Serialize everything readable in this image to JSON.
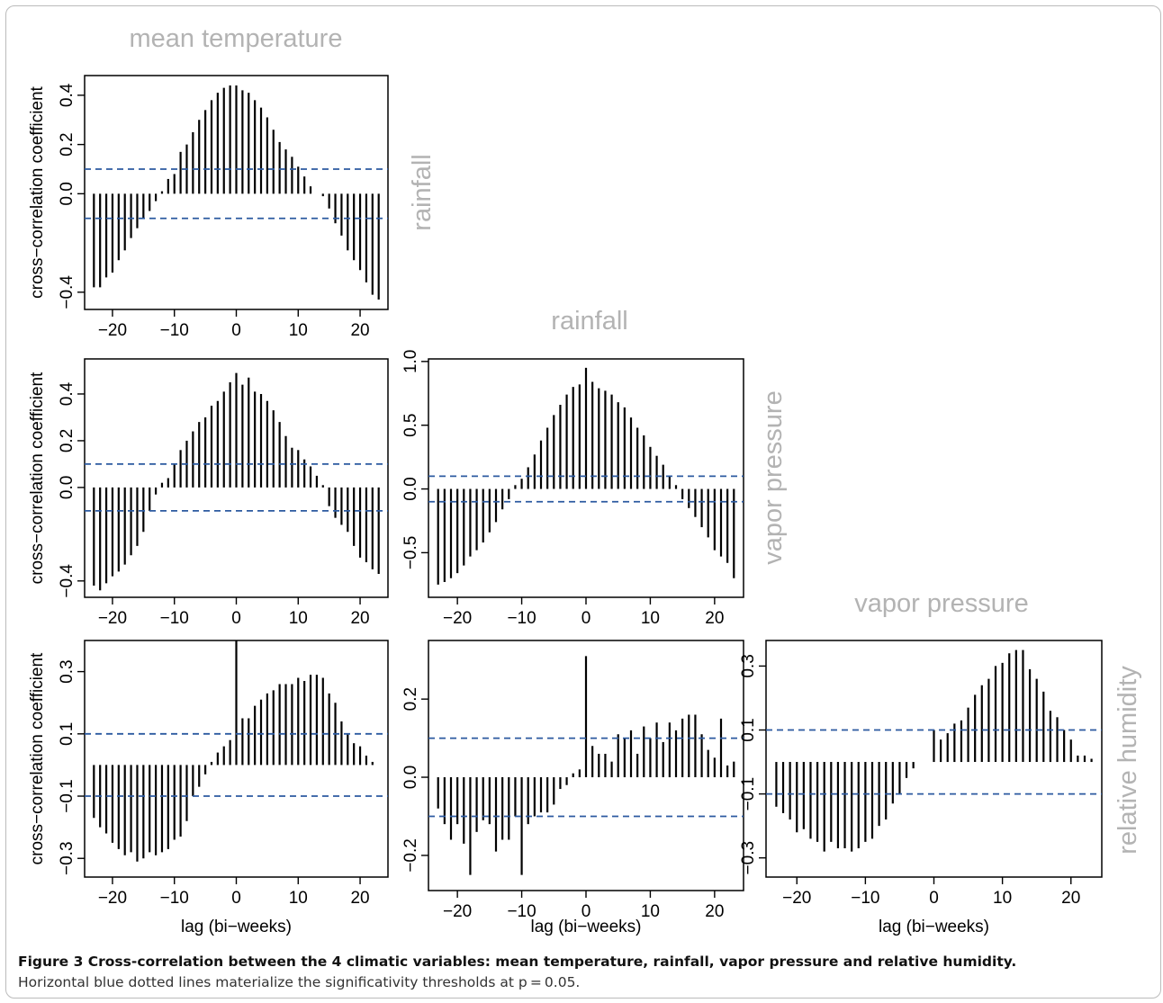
{
  "chart_data": [
    {
      "type": "bar",
      "panel": "row1-col1",
      "col_title": "mean temperature",
      "row_title": "rainfall",
      "ylabel": "cross−correlation coefficient",
      "xlabel": "",
      "xlim": [
        -24.5,
        24.5
      ],
      "ylim": [
        -0.47,
        0.48
      ],
      "yticks": [
        -0.4,
        0.0,
        0.2,
        0.4
      ],
      "ytick_labels": [
        "−0.4",
        "0.0",
        "0.2",
        "0.4"
      ],
      "xticks": [
        -20,
        -10,
        0,
        10,
        20
      ],
      "xtick_labels": [
        "−20",
        "−10",
        "0",
        "10",
        "20"
      ],
      "thresholds": [
        0.1,
        -0.1
      ],
      "lags": [
        -23,
        -22,
        -21,
        -20,
        -19,
        -18,
        -17,
        -16,
        -15,
        -14,
        -13,
        -12,
        -11,
        -10,
        -9,
        -8,
        -7,
        -6,
        -5,
        -4,
        -3,
        -2,
        -1,
        0,
        1,
        2,
        3,
        4,
        5,
        6,
        7,
        8,
        9,
        10,
        11,
        12,
        13,
        14,
        15,
        16,
        17,
        18,
        19,
        20,
        21,
        22,
        23
      ],
      "values": [
        -0.38,
        -0.38,
        -0.34,
        -0.32,
        -0.27,
        -0.23,
        -0.18,
        -0.14,
        -0.1,
        -0.07,
        -0.03,
        0.01,
        0.06,
        0.08,
        0.17,
        0.2,
        0.25,
        0.3,
        0.34,
        0.38,
        0.41,
        0.43,
        0.44,
        0.44,
        0.42,
        0.41,
        0.38,
        0.35,
        0.31,
        0.26,
        0.21,
        0.18,
        0.15,
        0.11,
        0.07,
        0.03,
        0.0,
        -0.01,
        -0.06,
        -0.12,
        -0.17,
        -0.23,
        -0.27,
        -0.31,
        -0.36,
        -0.41,
        -0.43
      ]
    },
    {
      "type": "bar",
      "panel": "row2-col1",
      "col_title": "",
      "row_title": "",
      "ylabel": "cross−correlation coefficient",
      "xlabel": "",
      "xlim": [
        -24.5,
        24.5
      ],
      "ylim": [
        -0.47,
        0.55
      ],
      "yticks": [
        -0.4,
        0.0,
        0.2,
        0.4
      ],
      "ytick_labels": [
        "−0.4",
        "0.0",
        "0.2",
        "0.4"
      ],
      "xticks": [
        -20,
        -10,
        0,
        10,
        20
      ],
      "xtick_labels": [
        "−20",
        "−10",
        "0",
        "10",
        "20"
      ],
      "thresholds": [
        0.1,
        -0.1
      ],
      "lags": [
        -23,
        -22,
        -21,
        -20,
        -19,
        -18,
        -17,
        -16,
        -15,
        -14,
        -13,
        -12,
        -11,
        -10,
        -9,
        -8,
        -7,
        -6,
        -5,
        -4,
        -3,
        -2,
        -1,
        0,
        1,
        2,
        3,
        4,
        5,
        6,
        7,
        8,
        9,
        10,
        11,
        12,
        13,
        14,
        15,
        16,
        17,
        18,
        19,
        20,
        21,
        22,
        23
      ],
      "values": [
        -0.42,
        -0.44,
        -0.41,
        -0.38,
        -0.36,
        -0.33,
        -0.29,
        -0.25,
        -0.19,
        -0.1,
        -0.03,
        0.02,
        0.04,
        0.1,
        0.16,
        0.2,
        0.24,
        0.28,
        0.3,
        0.35,
        0.37,
        0.41,
        0.45,
        0.49,
        0.44,
        0.47,
        0.41,
        0.4,
        0.37,
        0.33,
        0.28,
        0.22,
        0.17,
        0.16,
        0.12,
        0.09,
        0.05,
        0.01,
        -0.08,
        -0.13,
        -0.16,
        -0.19,
        -0.25,
        -0.3,
        -0.32,
        -0.35,
        -0.37
      ]
    },
    {
      "type": "bar",
      "panel": "row2-col2",
      "col_title": "rainfall",
      "row_title": "vapor pressure",
      "ylabel": "",
      "xlabel": "",
      "xlim": [
        -24.5,
        24.5
      ],
      "ylim": [
        -0.85,
        1.02
      ],
      "yticks": [
        -0.5,
        0.0,
        0.5,
        1.0
      ],
      "ytick_labels": [
        "−0.5",
        "0.0",
        "0.5",
        "1.0"
      ],
      "xticks": [
        -20,
        -10,
        0,
        10,
        20
      ],
      "xtick_labels": [
        "−20",
        "−10",
        "0",
        "10",
        "20"
      ],
      "thresholds": [
        0.1,
        -0.1
      ],
      "lags": [
        -23,
        -22,
        -21,
        -20,
        -19,
        -18,
        -17,
        -16,
        -15,
        -14,
        -13,
        -12,
        -11,
        -10,
        -9,
        -8,
        -7,
        -6,
        -5,
        -4,
        -3,
        -2,
        -1,
        0,
        1,
        2,
        3,
        4,
        5,
        6,
        7,
        8,
        9,
        10,
        11,
        12,
        13,
        14,
        15,
        16,
        17,
        18,
        19,
        20,
        21,
        22,
        23
      ],
      "values": [
        -0.75,
        -0.73,
        -0.7,
        -0.66,
        -0.6,
        -0.53,
        -0.48,
        -0.42,
        -0.34,
        -0.26,
        -0.16,
        -0.08,
        0.03,
        0.08,
        0.17,
        0.27,
        0.38,
        0.48,
        0.58,
        0.66,
        0.74,
        0.8,
        0.82,
        0.95,
        0.84,
        0.79,
        0.77,
        0.74,
        0.68,
        0.64,
        0.56,
        0.48,
        0.42,
        0.33,
        0.26,
        0.19,
        0.1,
        0.03,
        -0.08,
        -0.15,
        -0.22,
        -0.3,
        -0.38,
        -0.48,
        -0.53,
        -0.58,
        -0.7
      ]
    },
    {
      "type": "bar",
      "panel": "row3-col1",
      "col_title": "",
      "row_title": "",
      "ylabel": "cross−correlation coefficient",
      "xlabel": "lag (bi−weeks)",
      "xlim": [
        -24.5,
        24.5
      ],
      "ylim": [
        -0.36,
        0.4
      ],
      "yticks": [
        -0.3,
        -0.1,
        0.1,
        0.3
      ],
      "ytick_labels": [
        "−0.3",
        "−0.1",
        "0.1",
        "0.3"
      ],
      "xticks": [
        -20,
        -10,
        0,
        10,
        20
      ],
      "xtick_labels": [
        "−20",
        "−10",
        "0",
        "10",
        "20"
      ],
      "thresholds": [
        0.1,
        -0.1
      ],
      "lags": [
        -23,
        -22,
        -21,
        -20,
        -19,
        -18,
        -17,
        -16,
        -15,
        -14,
        -13,
        -12,
        -11,
        -10,
        -9,
        -8,
        -7,
        -6,
        -5,
        -4,
        -3,
        -2,
        -1,
        0,
        1,
        2,
        3,
        4,
        5,
        6,
        7,
        8,
        9,
        10,
        11,
        12,
        13,
        14,
        15,
        16,
        17,
        18,
        19,
        20,
        21,
        22,
        23
      ],
      "values": [
        -0.17,
        -0.2,
        -0.22,
        -0.25,
        -0.27,
        -0.29,
        -0.28,
        -0.31,
        -0.3,
        -0.28,
        -0.29,
        -0.28,
        -0.27,
        -0.24,
        -0.23,
        -0.18,
        -0.1,
        -0.07,
        -0.03,
        0.01,
        0.04,
        0.06,
        0.08,
        0.4,
        0.15,
        0.15,
        0.19,
        0.21,
        0.23,
        0.24,
        0.26,
        0.26,
        0.26,
        0.28,
        0.27,
        0.29,
        0.29,
        0.28,
        0.23,
        0.2,
        0.14,
        0.1,
        0.07,
        0.06,
        0.03,
        0.01,
        0.0
      ]
    },
    {
      "type": "bar",
      "panel": "row3-col2",
      "col_title": "",
      "row_title": "",
      "ylabel": "",
      "xlabel": "lag (bi−weeks)",
      "xlim": [
        -24.5,
        24.5
      ],
      "ylim": [
        -0.29,
        0.35
      ],
      "yticks": [
        -0.2,
        0.0,
        0.2
      ],
      "ytick_labels": [
        "−0.2",
        "0.0",
        "0.2"
      ],
      "xticks": [
        -20,
        -10,
        0,
        10,
        20
      ],
      "xtick_labels": [
        "−20",
        "−10",
        "0",
        "10",
        "20"
      ],
      "thresholds": [
        0.1,
        -0.1
      ],
      "lags": [
        -23,
        -22,
        -21,
        -20,
        -19,
        -18,
        -17,
        -16,
        -15,
        -14,
        -13,
        -12,
        -11,
        -10,
        -9,
        -8,
        -7,
        -6,
        -5,
        -4,
        -3,
        -2,
        -1,
        0,
        1,
        2,
        3,
        4,
        5,
        6,
        7,
        8,
        9,
        10,
        11,
        12,
        13,
        14,
        15,
        16,
        17,
        18,
        19,
        20,
        21,
        22,
        23
      ],
      "values": [
        -0.08,
        -0.12,
        -0.16,
        -0.12,
        -0.17,
        -0.25,
        -0.14,
        -0.11,
        -0.12,
        -0.19,
        -0.16,
        -0.16,
        -0.1,
        -0.25,
        -0.12,
        -0.1,
        -0.09,
        -0.09,
        -0.07,
        -0.03,
        -0.02,
        0.01,
        0.02,
        0.31,
        0.08,
        0.06,
        0.06,
        0.04,
        0.11,
        0.1,
        0.12,
        0.06,
        0.13,
        0.1,
        0.14,
        0.09,
        0.14,
        0.12,
        0.15,
        0.16,
        0.16,
        0.11,
        0.07,
        0.05,
        0.15,
        0.03,
        0.04
      ]
    },
    {
      "type": "bar",
      "panel": "row3-col3",
      "col_title": "vapor pressure",
      "row_title": "relative humidity",
      "ylabel": "",
      "xlabel": "lag (bi−weeks)",
      "xlim": [
        -24.5,
        24.5
      ],
      "ylim": [
        -0.36,
        0.38
      ],
      "yticks": [
        -0.3,
        -0.1,
        0.1,
        0.3
      ],
      "ytick_labels": [
        "−0.3",
        "−0.1",
        "0.1",
        "0.3"
      ],
      "xticks": [
        -20,
        -10,
        0,
        10,
        20
      ],
      "xtick_labels": [
        "−20",
        "−10",
        "0",
        "10",
        "20"
      ],
      "thresholds": [
        0.1,
        -0.1
      ],
      "lags": [
        -23,
        -22,
        -21,
        -20,
        -19,
        -18,
        -17,
        -16,
        -15,
        -14,
        -13,
        -12,
        -11,
        -10,
        -9,
        -8,
        -7,
        -6,
        -5,
        -4,
        -3,
        -2,
        -1,
        0,
        1,
        2,
        3,
        4,
        5,
        6,
        7,
        8,
        9,
        10,
        11,
        12,
        13,
        14,
        15,
        16,
        17,
        18,
        19,
        20,
        21,
        22,
        23
      ],
      "values": [
        -0.14,
        -0.16,
        -0.18,
        -0.22,
        -0.21,
        -0.24,
        -0.25,
        -0.28,
        -0.25,
        -0.27,
        -0.27,
        -0.28,
        -0.27,
        -0.25,
        -0.24,
        -0.2,
        -0.18,
        -0.13,
        -0.1,
        -0.05,
        -0.02,
        0.0,
        0.0,
        0.1,
        0.07,
        0.09,
        0.12,
        0.13,
        0.17,
        0.21,
        0.24,
        0.26,
        0.3,
        0.31,
        0.34,
        0.35,
        0.35,
        0.29,
        0.26,
        0.22,
        0.16,
        0.14,
        0.1,
        0.07,
        0.02,
        0.02,
        0.01
      ]
    }
  ],
  "caption": {
    "title": "Figure 3 Cross-correlation between the 4 climatic variables: mean temperature, rainfall, vapor pressure and relative humidity.",
    "text": "Horizontal blue dotted lines materialize the significativity thresholds at p = 0.05."
  },
  "colors": {
    "bars": "#000000",
    "threshold": "#2c5aa0",
    "titles": "#b3b3b3"
  }
}
